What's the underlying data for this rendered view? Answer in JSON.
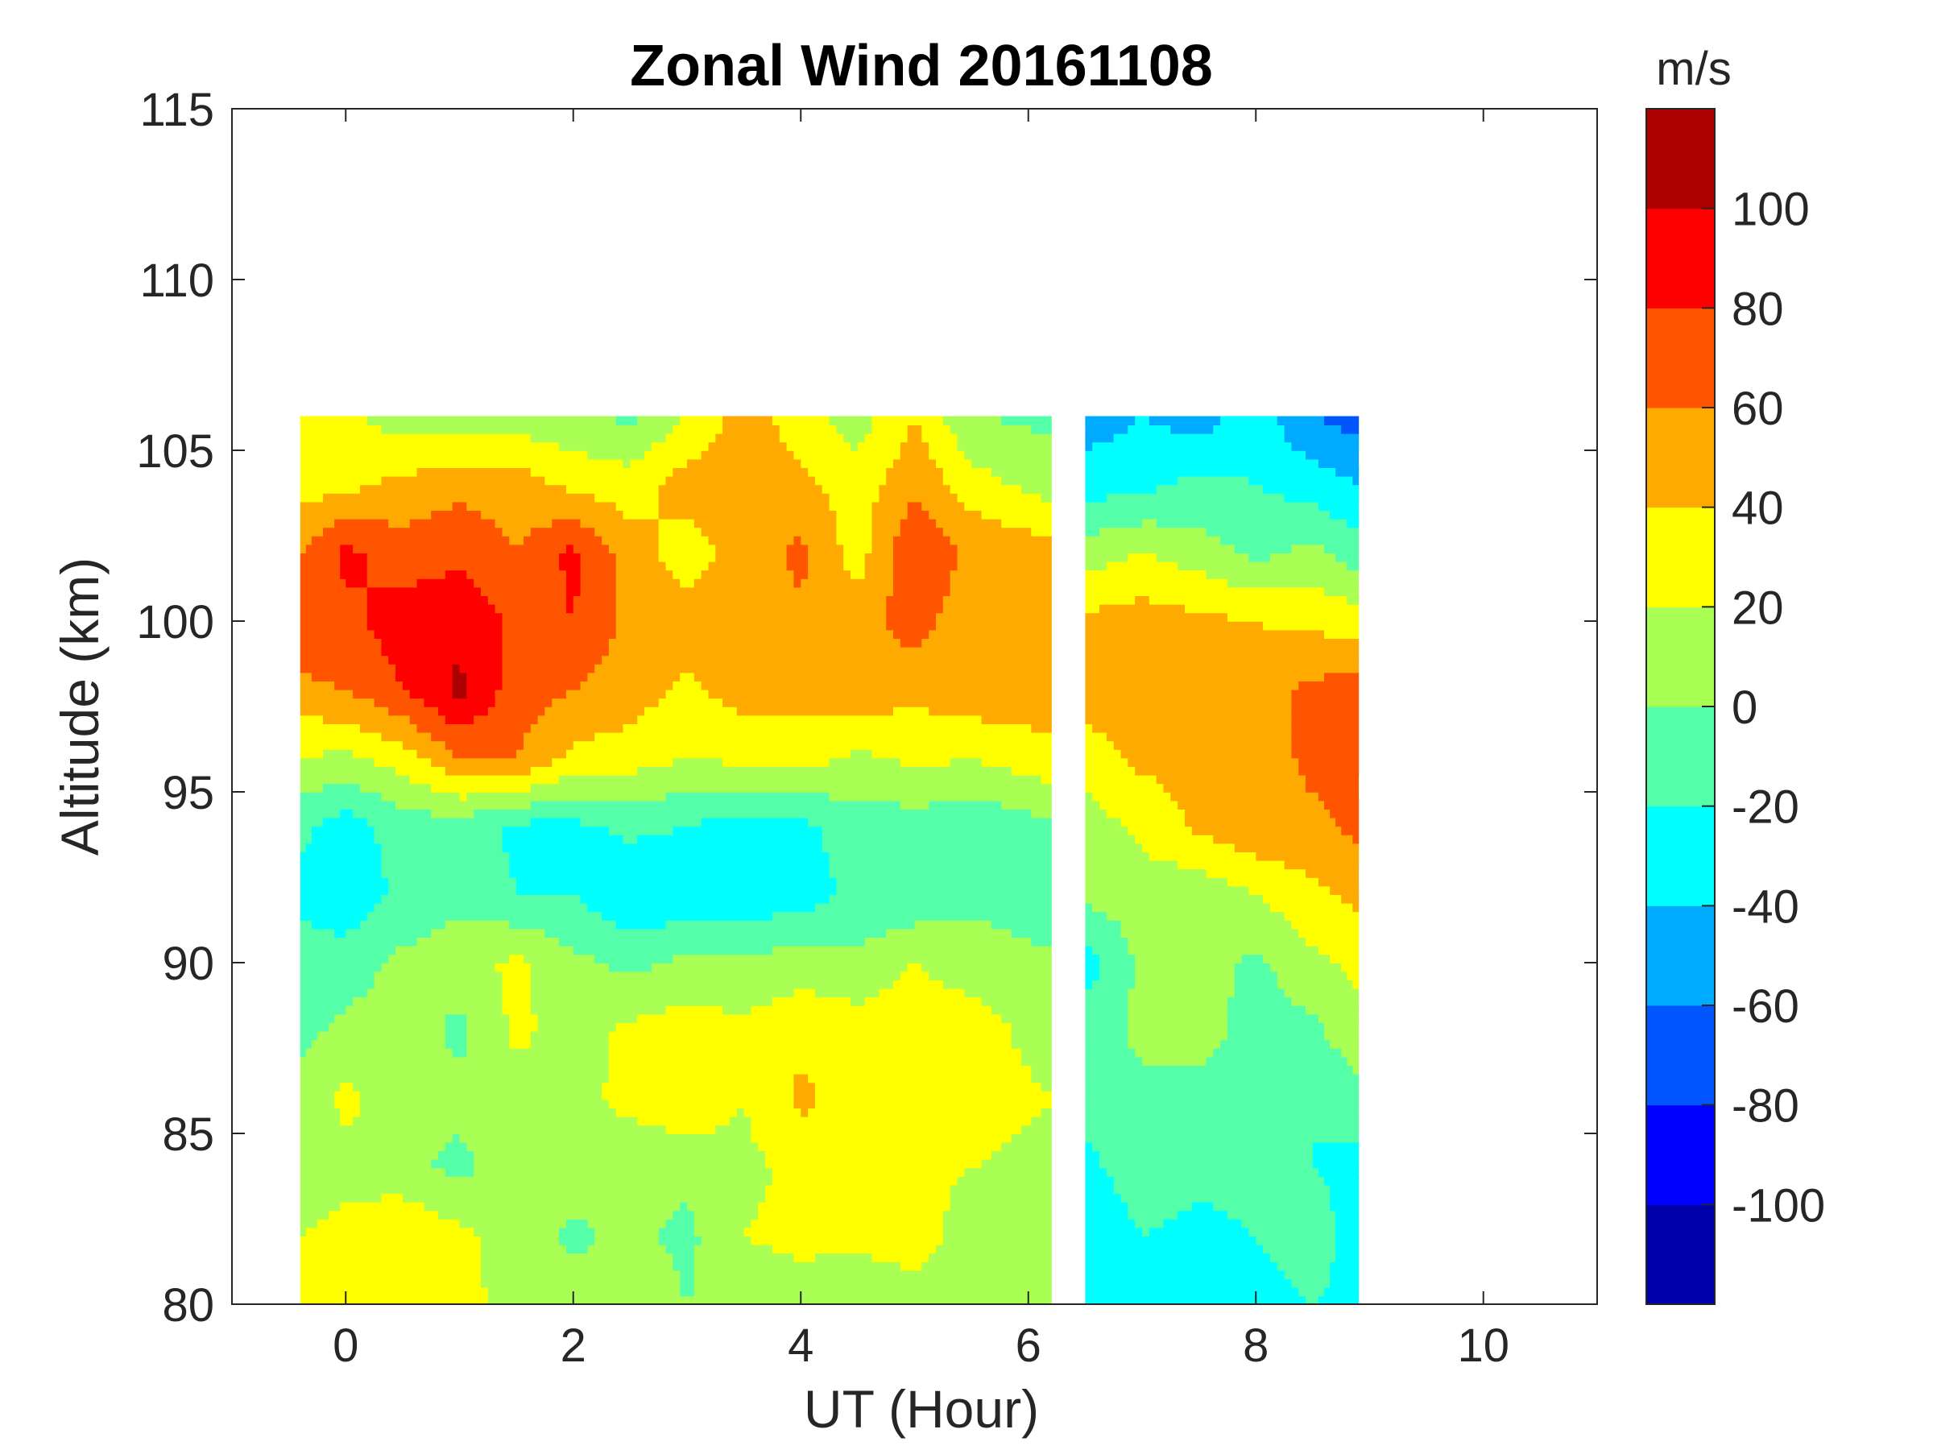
{
  "chart_data": {
    "type": "heatmap",
    "subtype": "filled-contour",
    "title": "Zonal Wind 20161108",
    "xlabel": "UT (Hour)",
    "ylabel": "Altitude (km)",
    "colorbar_label": "m/s",
    "xlim": [
      -1,
      11
    ],
    "ylim": [
      80,
      115
    ],
    "xticks": [
      "0",
      "2",
      "4",
      "6",
      "8",
      "10"
    ],
    "yticks": [
      "80",
      "85",
      "90",
      "95",
      "100",
      "105",
      "110",
      "115"
    ],
    "clim": [
      -120,
      120
    ],
    "colorbar_ticks": [
      "-100",
      "-80",
      "-60",
      "-40",
      "-20",
      "0",
      "20",
      "40",
      "60",
      "80",
      "100"
    ],
    "levels": [
      -120,
      -100,
      -80,
      -60,
      -40,
      -20,
      0,
      20,
      40,
      60,
      80,
      100,
      120
    ],
    "colors": [
      "#0000aa",
      "#0000ff",
      "#0055ff",
      "#00aaff",
      "#00ffff",
      "#55ffaa",
      "#aaff55",
      "#ffff00",
      "#ffaa00",
      "#ff5500",
      "#ff0000",
      "#aa0000"
    ],
    "altitudes": [
      80,
      82,
      84,
      86,
      88,
      90,
      92,
      94,
      96,
      98,
      100,
      102,
      104,
      106
    ],
    "segments": [
      {
        "times": [
          -0.4,
          0,
          0.5,
          1,
          1.5,
          2,
          2.5,
          3,
          3.5,
          4,
          4.5,
          5,
          5.5,
          6.2
        ],
        "values": [
          [
            25,
            20,
            30,
            25,
            15,
            10,
            15,
            0,
            10,
            10,
            5,
            10,
            5,
            15
          ],
          [
            20,
            25,
            40,
            25,
            10,
            -5,
            5,
            -5,
            20,
            25,
            25,
            30,
            10,
            5
          ],
          [
            10,
            15,
            5,
            -5,
            10,
            15,
            5,
            5,
            15,
            25,
            30,
            25,
            20,
            10
          ],
          [
            5,
            25,
            10,
            5,
            10,
            15,
            25,
            35,
            20,
            45,
            30,
            30,
            30,
            20
          ],
          [
            -5,
            5,
            10,
            -5,
            25,
            10,
            25,
            30,
            25,
            35,
            30,
            35,
            30,
            10
          ],
          [
            -10,
            -10,
            5,
            10,
            25,
            5,
            -5,
            5,
            5,
            10,
            5,
            20,
            10,
            5
          ],
          [
            -25,
            -35,
            -15,
            -5,
            -20,
            -20,
            -40,
            -35,
            -35,
            -30,
            -15,
            -15,
            -5,
            -15
          ],
          [
            -15,
            -30,
            -10,
            -10,
            -25,
            -25,
            -15,
            -20,
            -30,
            -25,
            -10,
            -10,
            -15,
            -5
          ],
          [
            20,
            15,
            30,
            60,
            60,
            35,
            30,
            20,
            25,
            30,
            15,
            25,
            20,
            35
          ],
          [
            55,
            60,
            80,
            105,
            70,
            60,
            50,
            35,
            50,
            45,
            55,
            45,
            55,
            50
          ],
          [
            75,
            75,
            90,
            95,
            75,
            80,
            55,
            50,
            55,
            55,
            50,
            70,
            45,
            50
          ],
          [
            60,
            85,
            70,
            75,
            60,
            85,
            50,
            30,
            50,
            65,
            30,
            80,
            55,
            50
          ],
          [
            30,
            35,
            45,
            55,
            50,
            35,
            30,
            50,
            55,
            45,
            30,
            55,
            30,
            10
          ],
          [
            30,
            25,
            10,
            5,
            10,
            5,
            -5,
            20,
            50,
            30,
            10,
            40,
            0,
            -5
          ]
        ]
      },
      {
        "times": [
          6.5,
          7,
          7.5,
          8,
          8.5,
          8.9
        ],
        "values": [
          [
            -30,
            -25,
            -35,
            -30,
            -20,
            -25
          ],
          [
            -35,
            -20,
            -25,
            -20,
            -10,
            -30
          ],
          [
            -25,
            -10,
            -15,
            -15,
            -20,
            -25
          ],
          [
            -15,
            -5,
            -10,
            -10,
            -20,
            -10
          ],
          [
            -10,
            5,
            10,
            -10,
            -5,
            15
          ],
          [
            -30,
            5,
            10,
            -5,
            15,
            25
          ],
          [
            5,
            10,
            5,
            20,
            35,
            45
          ],
          [
            10,
            25,
            45,
            55,
            55,
            65
          ],
          [
            30,
            45,
            45,
            50,
            65,
            70
          ],
          [
            50,
            55,
            45,
            50,
            65,
            70
          ],
          [
            45,
            50,
            45,
            40,
            35,
            30
          ],
          [
            10,
            20,
            10,
            -5,
            5,
            -10
          ],
          [
            -30,
            -25,
            -15,
            -20,
            -30,
            -40
          ],
          [
            -50,
            -40,
            -50,
            -30,
            -60,
            -70
          ]
        ]
      }
    ]
  }
}
